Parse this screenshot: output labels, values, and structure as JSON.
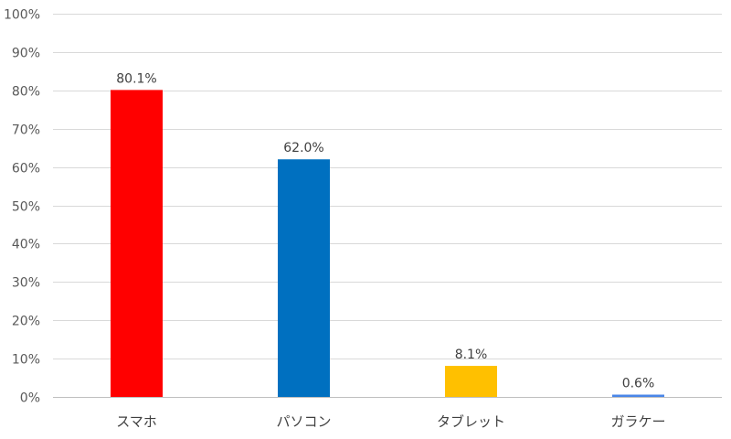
{
  "chart_data": {
    "type": "bar",
    "categories": [
      "スマホ",
      "パソコン",
      "タブレット",
      "ガラケー"
    ],
    "values": [
      80.1,
      62.0,
      8.1,
      0.6
    ],
    "data_labels": [
      "80.1%",
      "62.0%",
      "8.1%",
      "0.6%"
    ],
    "colors": [
      "#ff0000",
      "#0070c0",
      "#ffc000",
      "#4a86e8"
    ],
    "ylim": [
      0,
      100
    ],
    "y_ticks": [
      0,
      10,
      20,
      30,
      40,
      50,
      60,
      70,
      80,
      90,
      100
    ],
    "y_tick_labels": [
      "0%",
      "10%",
      "20%",
      "30%",
      "40%",
      "50%",
      "60%",
      "70%",
      "80%",
      "90%",
      "100%"
    ],
    "grid": true,
    "legend": "none",
    "title": "",
    "xlabel": "",
    "ylabel": ""
  }
}
